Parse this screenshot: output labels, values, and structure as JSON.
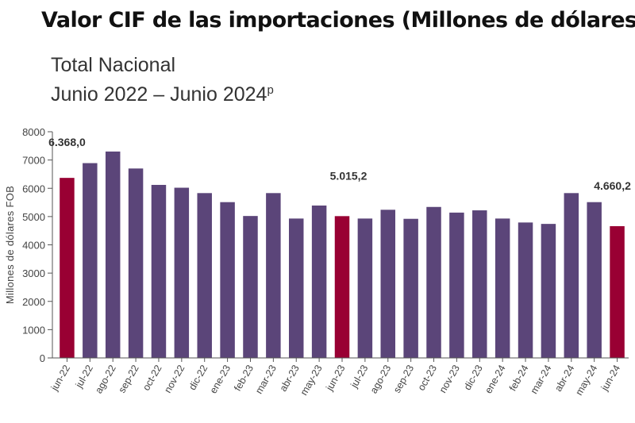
{
  "header": {
    "title": "Valor CIF de las importaciones (Millones de dólares)",
    "subtitle_line1": "Total Nacional",
    "subtitle_line2": "Junio 2022 – Junio 2024",
    "subtitle_sup": "p"
  },
  "colors": {
    "bar": "#5b4579",
    "highlight": "#990033",
    "axis": "#555555"
  },
  "chart_data": {
    "type": "bar",
    "ylabel": "Millones de dólares FOB",
    "ylim": [
      0,
      8000
    ],
    "yticks": [
      0,
      1000,
      2000,
      3000,
      4000,
      5000,
      6000,
      7000,
      8000
    ],
    "grid": false,
    "categories": [
      "jun-22",
      "jul-22",
      "ago-22",
      "sep-22",
      "oct-22",
      "nov-22",
      "dic-22",
      "ene-23",
      "feb-23",
      "mar-23",
      "abr-23",
      "may-23",
      "jun-23",
      "jul-23",
      "ago-23",
      "sep-23",
      "oct-23",
      "nov-23",
      "dic-23",
      "ene-24",
      "feb-24",
      "mar-24",
      "abr-24",
      "may-24",
      "jun-24"
    ],
    "values": [
      6368.0,
      6890,
      7300,
      6700,
      6120,
      6020,
      5830,
      5510,
      5020,
      5830,
      4930,
      5390,
      5015.2,
      4930,
      5240,
      4920,
      5340,
      5140,
      5220,
      4930,
      4790,
      4740,
      5830,
      5510,
      4660.2
    ],
    "highlighted": [
      "jun-22",
      "jun-23",
      "jun-24"
    ],
    "data_labels": [
      {
        "category": "jun-22",
        "text": "6.368,0"
      },
      {
        "category": "jun-23",
        "text": "5.015,2"
      },
      {
        "category": "jun-24",
        "text": "4.660,2"
      }
    ]
  }
}
